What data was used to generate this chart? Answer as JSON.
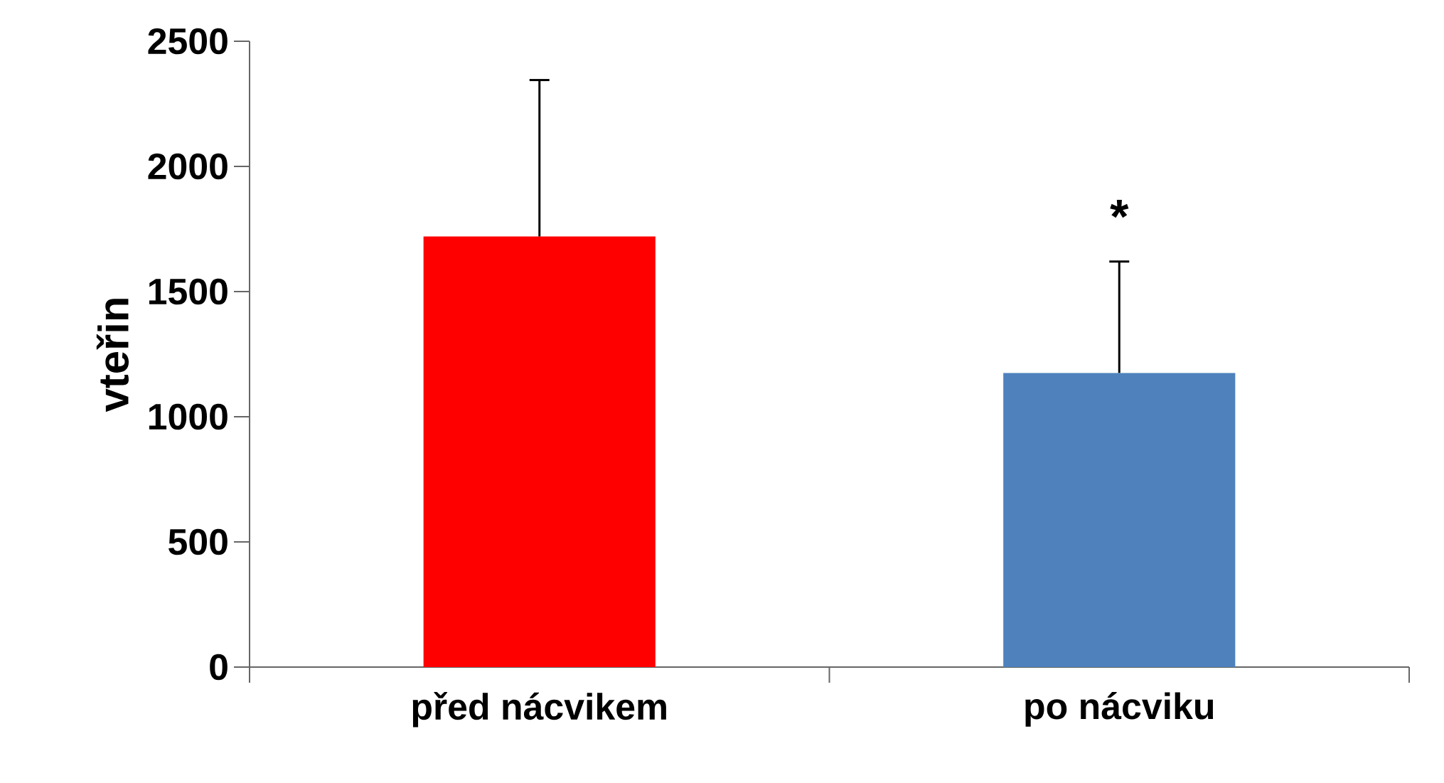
{
  "chart_data": {
    "type": "bar",
    "ylabel": "vteřin",
    "categories": [
      "před nácvikem",
      "po nácviku"
    ],
    "values": [
      1720,
      1175
    ],
    "colors": [
      "#ff0000",
      "#4f81bd"
    ],
    "errors": [
      [
        1720,
        2345
      ],
      [
        1175,
        1620
      ]
    ],
    "ylim": [
      0,
      2500
    ],
    "yticks": [
      0,
      500,
      1000,
      1500,
      2000,
      2500
    ],
    "annotations": [
      "*"
    ]
  }
}
